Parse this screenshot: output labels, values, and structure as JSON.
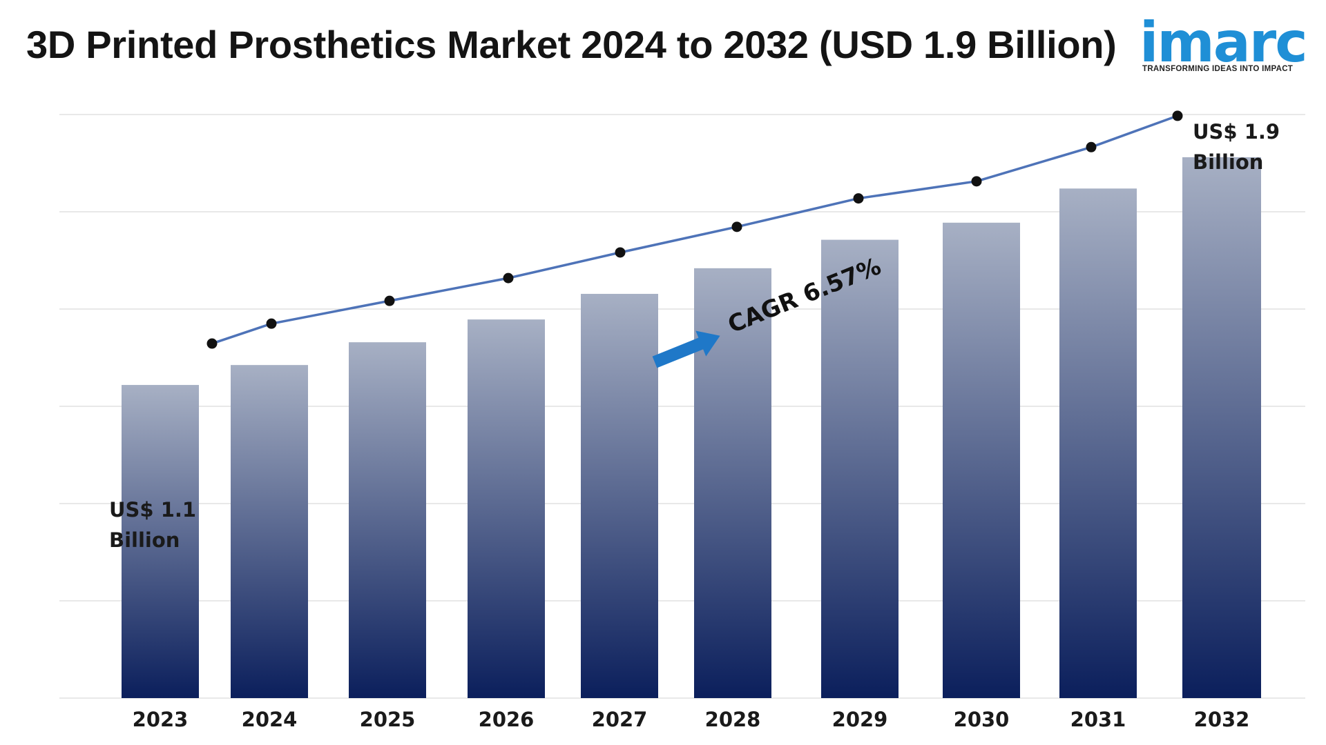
{
  "title": "3D Printed Prosthetics Market 2024 to 2032 (USD 1.9 Billion)",
  "logo": {
    "word": "imarc",
    "tagline": "TRANSFORMING IDEAS INTO IMPACT",
    "color": "#1f8fd6"
  },
  "chart_data": {
    "type": "bar",
    "categories": [
      "2023",
      "2024",
      "2025",
      "2026",
      "2027",
      "2028",
      "2029",
      "2030",
      "2031",
      "2032"
    ],
    "values": [
      1.1,
      1.17,
      1.25,
      1.33,
      1.42,
      1.51,
      1.61,
      1.67,
      1.79,
      1.9
    ],
    "trend_line": [
      1.1,
      1.17,
      1.25,
      1.33,
      1.42,
      1.51,
      1.61,
      1.67,
      1.79,
      1.9
    ],
    "ylim": [
      0,
      2.05
    ],
    "grid": true,
    "annotations": {
      "start_label": [
        "US$ 1.1",
        "Billion"
      ],
      "end_label": [
        "US$ 1.9",
        "Billion"
      ],
      "cagr": "CAGR 6.57%"
    },
    "colors": {
      "bar_top": "#a7b0c4",
      "bar_bottom": "#0b1f5c",
      "line": "#4e73b8",
      "marker": "#111111",
      "arrow": "#1f78c8",
      "grid": "#d9d9d9"
    }
  }
}
